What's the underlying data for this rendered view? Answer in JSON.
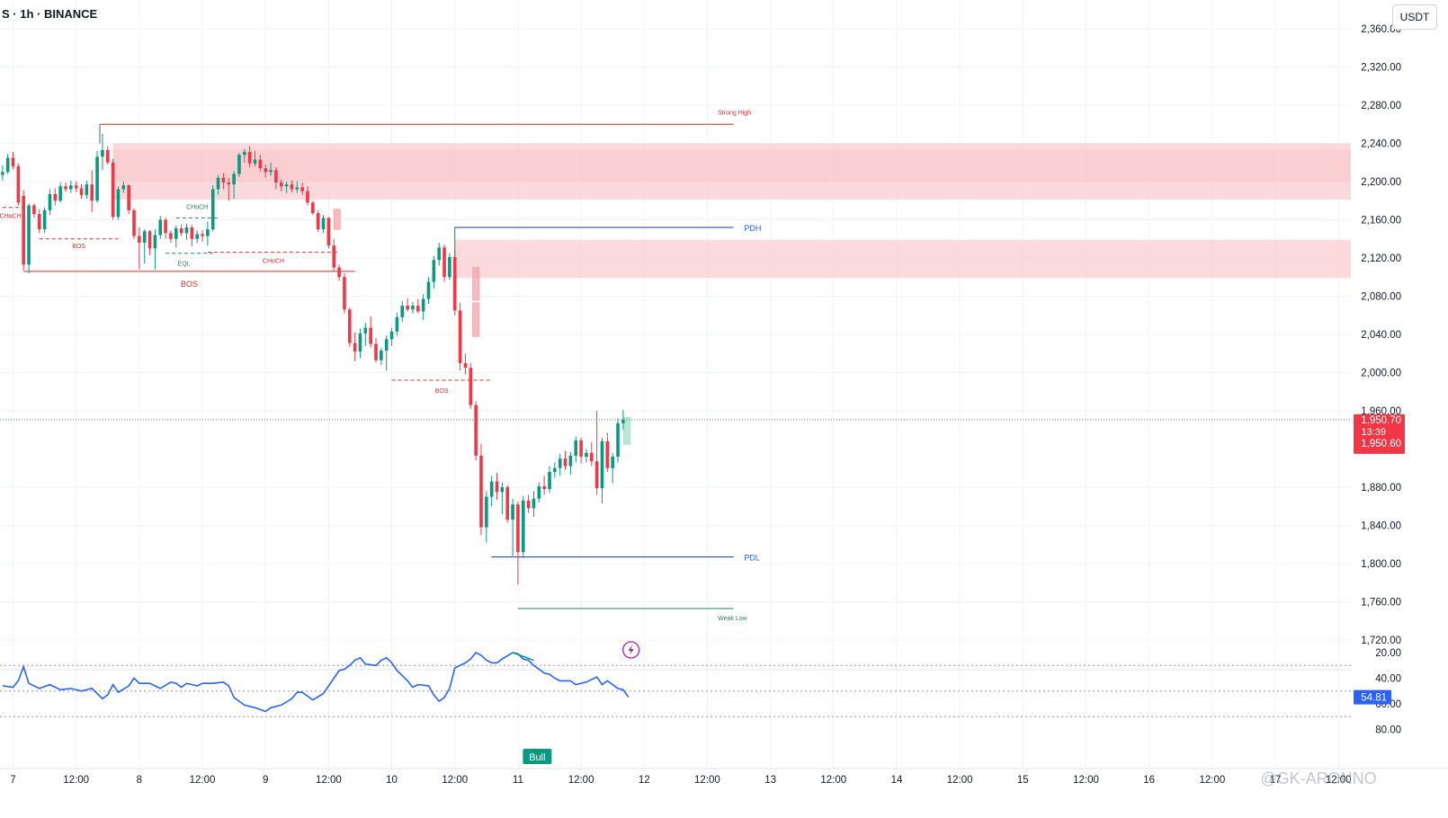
{
  "header": {
    "symbol_title": "S · 1h · BINANCE",
    "currency_button": "USDT"
  },
  "price_axis": {
    "ticks": [
      {
        "value": 2360,
        "label": "2,360.00"
      },
      {
        "value": 2320,
        "label": "2,320.00"
      },
      {
        "value": 2280,
        "label": "2,280.00"
      },
      {
        "value": 2240,
        "label": "2,240.00"
      },
      {
        "value": 2200,
        "label": "2,200.00"
      },
      {
        "value": 2160,
        "label": "2,160.00"
      },
      {
        "value": 2120,
        "label": "2,120.00"
      },
      {
        "value": 2080,
        "label": "2,080.00"
      },
      {
        "value": 2040,
        "label": "2,040.00"
      },
      {
        "value": 2000,
        "label": "2,000.00"
      },
      {
        "value": 1960,
        "label": "1,960.00"
      },
      {
        "value": 1880,
        "label": "1,880.00"
      },
      {
        "value": 1840,
        "label": "1,840.00"
      },
      {
        "value": 1800,
        "label": "1,800.00"
      },
      {
        "value": 1760,
        "label": "1,760.00"
      },
      {
        "value": 1720,
        "label": "1,720.00"
      }
    ],
    "last_price_label": "1,950.70",
    "countdown": "13:39",
    "bid_label": "1,950.60"
  },
  "rsi_axis": {
    "ticks": [
      {
        "value": 80,
        "label": "80.00"
      },
      {
        "value": 60,
        "label": "60.00"
      },
      {
        "value": 40,
        "label": "40.00"
      },
      {
        "value": 20,
        "label": "20.00"
      }
    ],
    "rsi_value_label": "54.81",
    "bull_label": "Bull"
  },
  "time_axis": {
    "labels": [
      {
        "t": 0,
        "label": "7"
      },
      {
        "t": 12,
        "label": "12:00"
      },
      {
        "t": 24,
        "label": "8"
      },
      {
        "t": 36,
        "label": "12:00"
      },
      {
        "t": 48,
        "label": "9"
      },
      {
        "t": 60,
        "label": "12:00"
      },
      {
        "t": 72,
        "label": "10"
      },
      {
        "t": 84,
        "label": "12:00"
      },
      {
        "t": 96,
        "label": "11"
      },
      {
        "t": 108,
        "label": "12:00"
      },
      {
        "t": 120,
        "label": "12"
      },
      {
        "t": 132,
        "label": "12:00"
      },
      {
        "t": 144,
        "label": "13"
      },
      {
        "t": 156,
        "label": "12:00"
      },
      {
        "t": 168,
        "label": "14"
      },
      {
        "t": 180,
        "label": "12:00"
      },
      {
        "t": 192,
        "label": "15"
      },
      {
        "t": 204,
        "label": "12:00"
      },
      {
        "t": 216,
        "label": "16"
      },
      {
        "t": 228,
        "label": "12:00"
      },
      {
        "t": 240,
        "label": "17"
      },
      {
        "t": 252,
        "label": "12:00"
      }
    ]
  },
  "watermark": "@GK-ARONNO",
  "colors": {
    "up": "#089981",
    "down": "#f23645",
    "structure_red": "#d32f2f",
    "structure_green": "#2e7d5b",
    "level_blue": "#2962ff",
    "rsi_line": "#2962ff",
    "supply_zone": "#f7c6ca",
    "rsi_band": "#e3f2fd"
  },
  "chart_data": {
    "type": "candlestick",
    "timeframe": "1h",
    "exchange": "BINANCE",
    "quote_currency": "USDT",
    "ylim": [
      1700,
      2370
    ],
    "x_unit": "hours since day 7 00:00",
    "candles": [
      [
        -2,
        2207,
        2217,
        2201,
        2210
      ],
      [
        -1,
        2210,
        2229,
        2208,
        2225
      ],
      [
        0,
        2225,
        2231,
        2213,
        2216
      ],
      [
        1,
        2216,
        2219,
        2175,
        2178
      ],
      [
        2,
        2185,
        2191,
        2107,
        2113
      ],
      [
        3,
        2113,
        2177,
        2104,
        2175
      ],
      [
        4,
        2175,
        2177,
        2162,
        2166
      ],
      [
        5,
        2166,
        2171,
        2146,
        2150
      ],
      [
        6,
        2150,
        2173,
        2146,
        2170
      ],
      [
        7,
        2170,
        2192,
        2165,
        2187
      ],
      [
        8,
        2187,
        2193,
        2175,
        2180
      ],
      [
        9,
        2180,
        2199,
        2178,
        2195
      ],
      [
        10,
        2195,
        2199,
        2189,
        2192
      ],
      [
        11,
        2192,
        2201,
        2188,
        2196
      ],
      [
        12,
        2196,
        2200,
        2189,
        2193
      ],
      [
        13,
        2193,
        2197,
        2182,
        2186
      ],
      [
        14,
        2186,
        2201,
        2182,
        2197
      ],
      [
        15,
        2197,
        2212,
        2168,
        2180
      ],
      [
        16,
        2180,
        2232,
        2178,
        2226
      ],
      [
        17,
        2226,
        2250,
        2212,
        2233
      ],
      [
        18,
        2233,
        2237,
        2218,
        2220
      ],
      [
        19,
        2220,
        2224,
        2160,
        2163
      ],
      [
        20,
        2163,
        2195,
        2160,
        2192
      ],
      [
        21,
        2192,
        2200,
        2188,
        2196
      ],
      [
        22,
        2196,
        2197,
        2166,
        2170
      ],
      [
        23,
        2170,
        2172,
        2140,
        2143
      ],
      [
        24,
        2143,
        2152,
        2108,
        2136
      ],
      [
        25,
        2136,
        2150,
        2114,
        2148
      ],
      [
        26,
        2148,
        2149,
        2123,
        2130
      ],
      [
        27,
        2130,
        2150,
        2108,
        2144
      ],
      [
        28,
        2144,
        2164,
        2140,
        2160
      ],
      [
        29,
        2160,
        2162,
        2140,
        2146
      ],
      [
        30,
        2146,
        2149,
        2136,
        2140
      ],
      [
        31,
        2140,
        2154,
        2131,
        2151
      ],
      [
        32,
        2151,
        2155,
        2143,
        2146
      ],
      [
        33,
        2146,
        2156,
        2139,
        2152
      ],
      [
        34,
        2152,
        2155,
        2132,
        2140
      ],
      [
        35,
        2140,
        2149,
        2136,
        2145
      ],
      [
        36,
        2145,
        2149,
        2137,
        2143
      ],
      [
        37,
        2143,
        2158,
        2133,
        2150
      ],
      [
        38,
        2150,
        2196,
        2148,
        2192
      ],
      [
        39,
        2192,
        2207,
        2186,
        2204
      ],
      [
        40,
        2204,
        2209,
        2192,
        2199
      ],
      [
        41,
        2199,
        2204,
        2180,
        2197
      ],
      [
        42,
        2197,
        2211,
        2182,
        2208
      ],
      [
        43,
        2208,
        2230,
        2205,
        2228
      ],
      [
        44,
        2228,
        2234,
        2220,
        2231
      ],
      [
        45,
        2231,
        2237,
        2215,
        2219
      ],
      [
        46,
        2219,
        2232,
        2216,
        2223
      ],
      [
        47,
        2223,
        2228,
        2210,
        2214
      ],
      [
        48,
        2214,
        2218,
        2204,
        2210
      ],
      [
        49,
        2210,
        2220,
        2206,
        2212
      ],
      [
        50,
        2212,
        2215,
        2192,
        2199
      ],
      [
        51,
        2199,
        2202,
        2190,
        2195
      ],
      [
        52,
        2195,
        2200,
        2188,
        2197
      ],
      [
        53,
        2197,
        2201,
        2189,
        2192
      ],
      [
        54,
        2192,
        2200,
        2188,
        2194
      ],
      [
        55,
        2194,
        2199,
        2186,
        2190
      ],
      [
        56,
        2190,
        2195,
        2175,
        2178
      ],
      [
        57,
        2178,
        2180,
        2165,
        2167
      ],
      [
        58,
        2167,
        2170,
        2147,
        2150
      ],
      [
        59,
        2150,
        2165,
        2146,
        2162
      ],
      [
        60,
        2162,
        2163,
        2130,
        2133
      ],
      [
        61,
        2133,
        2140,
        2106,
        2110
      ],
      [
        62,
        2110,
        2113,
        2096,
        2100
      ],
      [
        63,
        2100,
        2104,
        2062,
        2066
      ],
      [
        64,
        2066,
        2068,
        2027,
        2031
      ],
      [
        65,
        2031,
        2042,
        2012,
        2022
      ],
      [
        66,
        2022,
        2046,
        2015,
        2041
      ],
      [
        67,
        2041,
        2052,
        2028,
        2047
      ],
      [
        68,
        2047,
        2059,
        2026,
        2030
      ],
      [
        69,
        2030,
        2036,
        2011,
        2013
      ],
      [
        70,
        2013,
        2026,
        2008,
        2023
      ],
      [
        71,
        2023,
        2039,
        2002,
        2035
      ],
      [
        72,
        2035,
        2047,
        2028,
        2043
      ],
      [
        73,
        2043,
        2063,
        2039,
        2058
      ],
      [
        74,
        2058,
        2075,
        2053,
        2070
      ],
      [
        75,
        2070,
        2078,
        2064,
        2066
      ],
      [
        76,
        2066,
        2074,
        2062,
        2070
      ],
      [
        77,
        2070,
        2077,
        2062,
        2064
      ],
      [
        78,
        2064,
        2082,
        2055,
        2077
      ],
      [
        79,
        2077,
        2100,
        2072,
        2095
      ],
      [
        80,
        2095,
        2122,
        2088,
        2118
      ],
      [
        81,
        2118,
        2136,
        2112,
        2131
      ],
      [
        82,
        2131,
        2134,
        2095,
        2100
      ],
      [
        83,
        2100,
        2125,
        2097,
        2121
      ],
      [
        84,
        2121,
        2128,
        2060,
        2065
      ],
      [
        85,
        2065,
        2073,
        2002,
        2010
      ],
      [
        86,
        2010,
        2020,
        1998,
        2005
      ],
      [
        87,
        2005,
        2010,
        1962,
        1966
      ],
      [
        88,
        1966,
        1970,
        1908,
        1913
      ],
      [
        89,
        1913,
        1925,
        1830,
        1838
      ],
      [
        90,
        1838,
        1876,
        1822,
        1870
      ],
      [
        91,
        1870,
        1892,
        1860,
        1886
      ],
      [
        92,
        1886,
        1895,
        1867,
        1875
      ],
      [
        93,
        1875,
        1885,
        1852,
        1880
      ],
      [
        94,
        1880,
        1882,
        1843,
        1846
      ],
      [
        95,
        1846,
        1868,
        1808,
        1862
      ],
      [
        96,
        1862,
        1865,
        1778,
        1812
      ],
      [
        97,
        1812,
        1871,
        1806,
        1866
      ],
      [
        98,
        1866,
        1872,
        1853,
        1858
      ],
      [
        99,
        1858,
        1876,
        1849,
        1868
      ],
      [
        100,
        1868,
        1885,
        1864,
        1881
      ],
      [
        101,
        1881,
        1892,
        1872,
        1878
      ],
      [
        102,
        1878,
        1902,
        1874,
        1896
      ],
      [
        103,
        1896,
        1906,
        1890,
        1900
      ],
      [
        104,
        1900,
        1915,
        1892,
        1910
      ],
      [
        105,
        1910,
        1918,
        1898,
        1902
      ],
      [
        106,
        1902,
        1917,
        1893,
        1913
      ],
      [
        107,
        1913,
        1933,
        1906,
        1929
      ],
      [
        108,
        1929,
        1932,
        1905,
        1912
      ],
      [
        109,
        1912,
        1920,
        1906,
        1916
      ],
      [
        110,
        1916,
        1927,
        1902,
        1907
      ],
      [
        111,
        1907,
        1960,
        1872,
        1879
      ],
      [
        112,
        1879,
        1932,
        1863,
        1928
      ],
      [
        113,
        1928,
        1937,
        1896,
        1900
      ],
      [
        114,
        1900,
        1916,
        1884,
        1912
      ],
      [
        115,
        1912,
        1952,
        1906,
        1947
      ],
      [
        116,
        1947,
        1961,
        1940,
        1950.7
      ]
    ],
    "annotations": [
      {
        "label": "Strong High",
        "price": 2260,
        "color": "red"
      },
      {
        "label": "PDH",
        "price": 2152,
        "color": "blue"
      },
      {
        "label": "PDL",
        "price": 1807,
        "color": "blue"
      },
      {
        "label": "Weak Low",
        "price": 1753,
        "color": "green"
      },
      {
        "label": "BOS",
        "price": 2140,
        "color": "red"
      },
      {
        "label": "BOS",
        "price": 2106,
        "color": "red"
      },
      {
        "label": "BOS",
        "price": 1992,
        "color": "red"
      },
      {
        "label": "CHoCH",
        "price": 2162,
        "color": "green"
      },
      {
        "label": "CHoCH",
        "price": 2173,
        "color": "red"
      },
      {
        "label": "CHoCH",
        "price": 2126,
        "color": "red"
      },
      {
        "label": "EQL",
        "price": 2125,
        "color": "green"
      }
    ],
    "zones": [
      {
        "type": "supply",
        "from": 2181,
        "to": 2240
      },
      {
        "type": "supply",
        "from": 2099,
        "to": 2139
      }
    ],
    "rsi": {
      "ylim": [
        15,
        85
      ],
      "band": [
        30,
        70
      ],
      "midline": 50,
      "values": [
        [
          -2,
          46
        ],
        [
          0,
          47
        ],
        [
          1,
          42
        ],
        [
          2,
          31
        ],
        [
          3,
          44
        ],
        [
          5,
          48
        ],
        [
          7,
          45
        ],
        [
          9,
          49
        ],
        [
          11,
          48
        ],
        [
          13,
          50
        ],
        [
          15,
          48
        ],
        [
          16,
          52
        ],
        [
          17,
          56
        ],
        [
          18,
          53
        ],
        [
          19,
          45
        ],
        [
          20,
          51
        ],
        [
          22,
          46
        ],
        [
          23,
          40
        ],
        [
          24,
          44
        ],
        [
          26,
          44
        ],
        [
          28,
          48
        ],
        [
          30,
          43
        ],
        [
          31,
          44
        ],
        [
          32,
          47
        ],
        [
          33,
          44
        ],
        [
          35,
          46
        ],
        [
          36,
          44
        ],
        [
          38,
          44
        ],
        [
          40,
          43
        ],
        [
          41,
          46
        ],
        [
          42,
          55
        ],
        [
          44,
          61
        ],
        [
          46,
          63
        ],
        [
          48,
          66
        ],
        [
          49,
          63
        ],
        [
          51,
          61
        ],
        [
          53,
          56
        ],
        [
          54,
          51
        ],
        [
          55,
          51
        ],
        [
          57,
          57
        ],
        [
          59,
          52
        ],
        [
          60,
          46
        ],
        [
          61,
          40
        ],
        [
          62,
          34
        ],
        [
          63,
          33
        ],
        [
          64,
          30
        ],
        [
          65,
          26
        ],
        [
          66,
          24
        ],
        [
          67,
          29
        ],
        [
          69,
          30
        ],
        [
          70,
          26
        ],
        [
          71,
          24
        ],
        [
          72,
          28
        ],
        [
          73,
          34
        ],
        [
          74,
          38
        ],
        [
          75,
          42
        ],
        [
          76,
          47
        ],
        [
          77,
          45
        ],
        [
          79,
          46
        ],
        [
          80,
          53
        ],
        [
          81,
          58
        ],
        [
          82,
          55
        ],
        [
          83,
          48
        ],
        [
          84,
          32
        ],
        [
          86,
          28
        ],
        [
          87,
          25
        ],
        [
          88,
          20
        ],
        [
          89,
          22
        ],
        [
          90,
          26
        ],
        [
          91,
          28
        ],
        [
          92,
          28
        ],
        [
          93,
          25
        ],
        [
          95,
          20
        ],
        [
          96,
          21
        ],
        [
          97,
          25
        ],
        [
          98,
          26
        ],
        [
          99,
          30
        ],
        [
          100,
          33
        ],
        [
          101,
          36
        ],
        [
          102,
          37
        ],
        [
          103,
          40
        ],
        [
          104,
          42
        ],
        [
          106,
          42
        ],
        [
          107,
          45
        ],
        [
          108,
          44
        ],
        [
          109,
          43
        ],
        [
          111,
          39
        ],
        [
          112,
          45
        ],
        [
          113,
          42
        ],
        [
          115,
          48
        ],
        [
          116,
          49
        ],
        [
          117,
          54.81
        ]
      ]
    }
  }
}
